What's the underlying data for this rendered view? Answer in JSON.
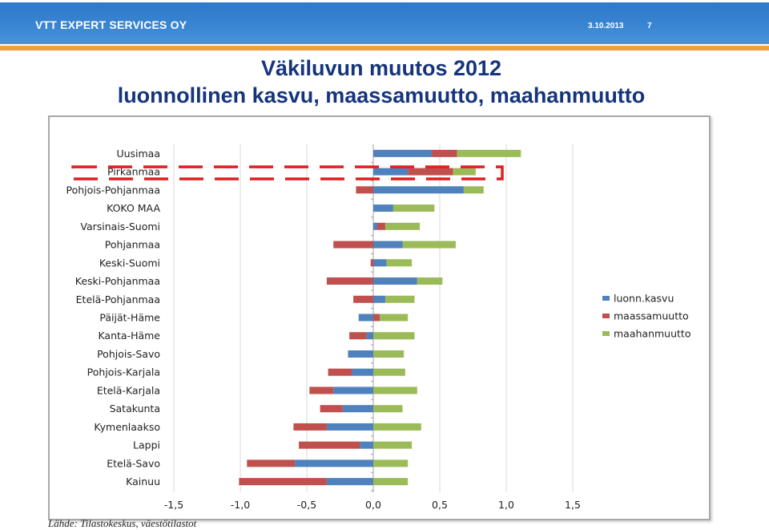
{
  "header": {
    "company": "VTT EXPERT SERVICES OY",
    "date": "3.10.2013",
    "page": "7"
  },
  "title": {
    "line1": "Väkiluvun muutos 2012",
    "line2": "luonnollinen kasvu, maassamuutto, maahanmuutto"
  },
  "source": "Lähde: Tilastokeskus, väestötilastot",
  "colors": {
    "luonn": "#4f81bd",
    "maassa": "#c0504d",
    "maahan": "#9bbb59",
    "highlight": "#e02020"
  },
  "chart_data": {
    "type": "bar",
    "orientation": "horizontal",
    "stacked": true,
    "categories": [
      "Uusimaa",
      "Pirkanmaa",
      "Pohjois-Pohjanmaa",
      "KOKO MAA",
      "Varsinais-Suomi",
      "Pohjanmaa",
      "Keski-Suomi",
      "Keski-Pohjanmaa",
      "Etelä-Pohjanmaa",
      "Päijät-Häme",
      "Kanta-Häme",
      "Pohjois-Savo",
      "Pohjois-Karjala",
      "Etelä-Karjala",
      "Satakunta",
      "Kymenlaakso",
      "Lappi",
      "Etelä-Savo",
      "Kainuu"
    ],
    "series": [
      {
        "name": "luonn.kasvu",
        "values": [
          0.44,
          0.26,
          0.68,
          0.15,
          0.03,
          0.22,
          0.1,
          0.33,
          0.09,
          -0.11,
          -0.05,
          -0.19,
          -0.16,
          -0.3,
          -0.23,
          -0.35,
          -0.1,
          -0.59,
          -0.35
        ]
      },
      {
        "name": "maassamuutto",
        "values": [
          0.19,
          0.34,
          -0.13,
          0.0,
          0.06,
          -0.3,
          -0.02,
          -0.35,
          -0.15,
          0.05,
          -0.13,
          0.0,
          -0.18,
          -0.18,
          -0.17,
          -0.25,
          -0.46,
          -0.36,
          -0.66
        ]
      },
      {
        "name": "maahanmuutto",
        "values": [
          0.48,
          0.17,
          0.15,
          0.31,
          0.26,
          0.4,
          0.19,
          0.19,
          0.22,
          0.21,
          0.31,
          0.23,
          0.24,
          0.33,
          0.22,
          0.36,
          0.29,
          0.26,
          0.26
        ]
      }
    ],
    "xlim": [
      -1.5,
      1.5
    ],
    "xticks": [
      "-1,5",
      "-1,0",
      "-0,5",
      "0,0",
      "0,5",
      "1,0",
      "1,5"
    ],
    "xtick_values": [
      -1.5,
      -1.0,
      -0.5,
      0.0,
      0.5,
      1.0,
      1.5
    ],
    "grid": true,
    "legend": "right",
    "highlight_category": "Pirkanmaa"
  }
}
